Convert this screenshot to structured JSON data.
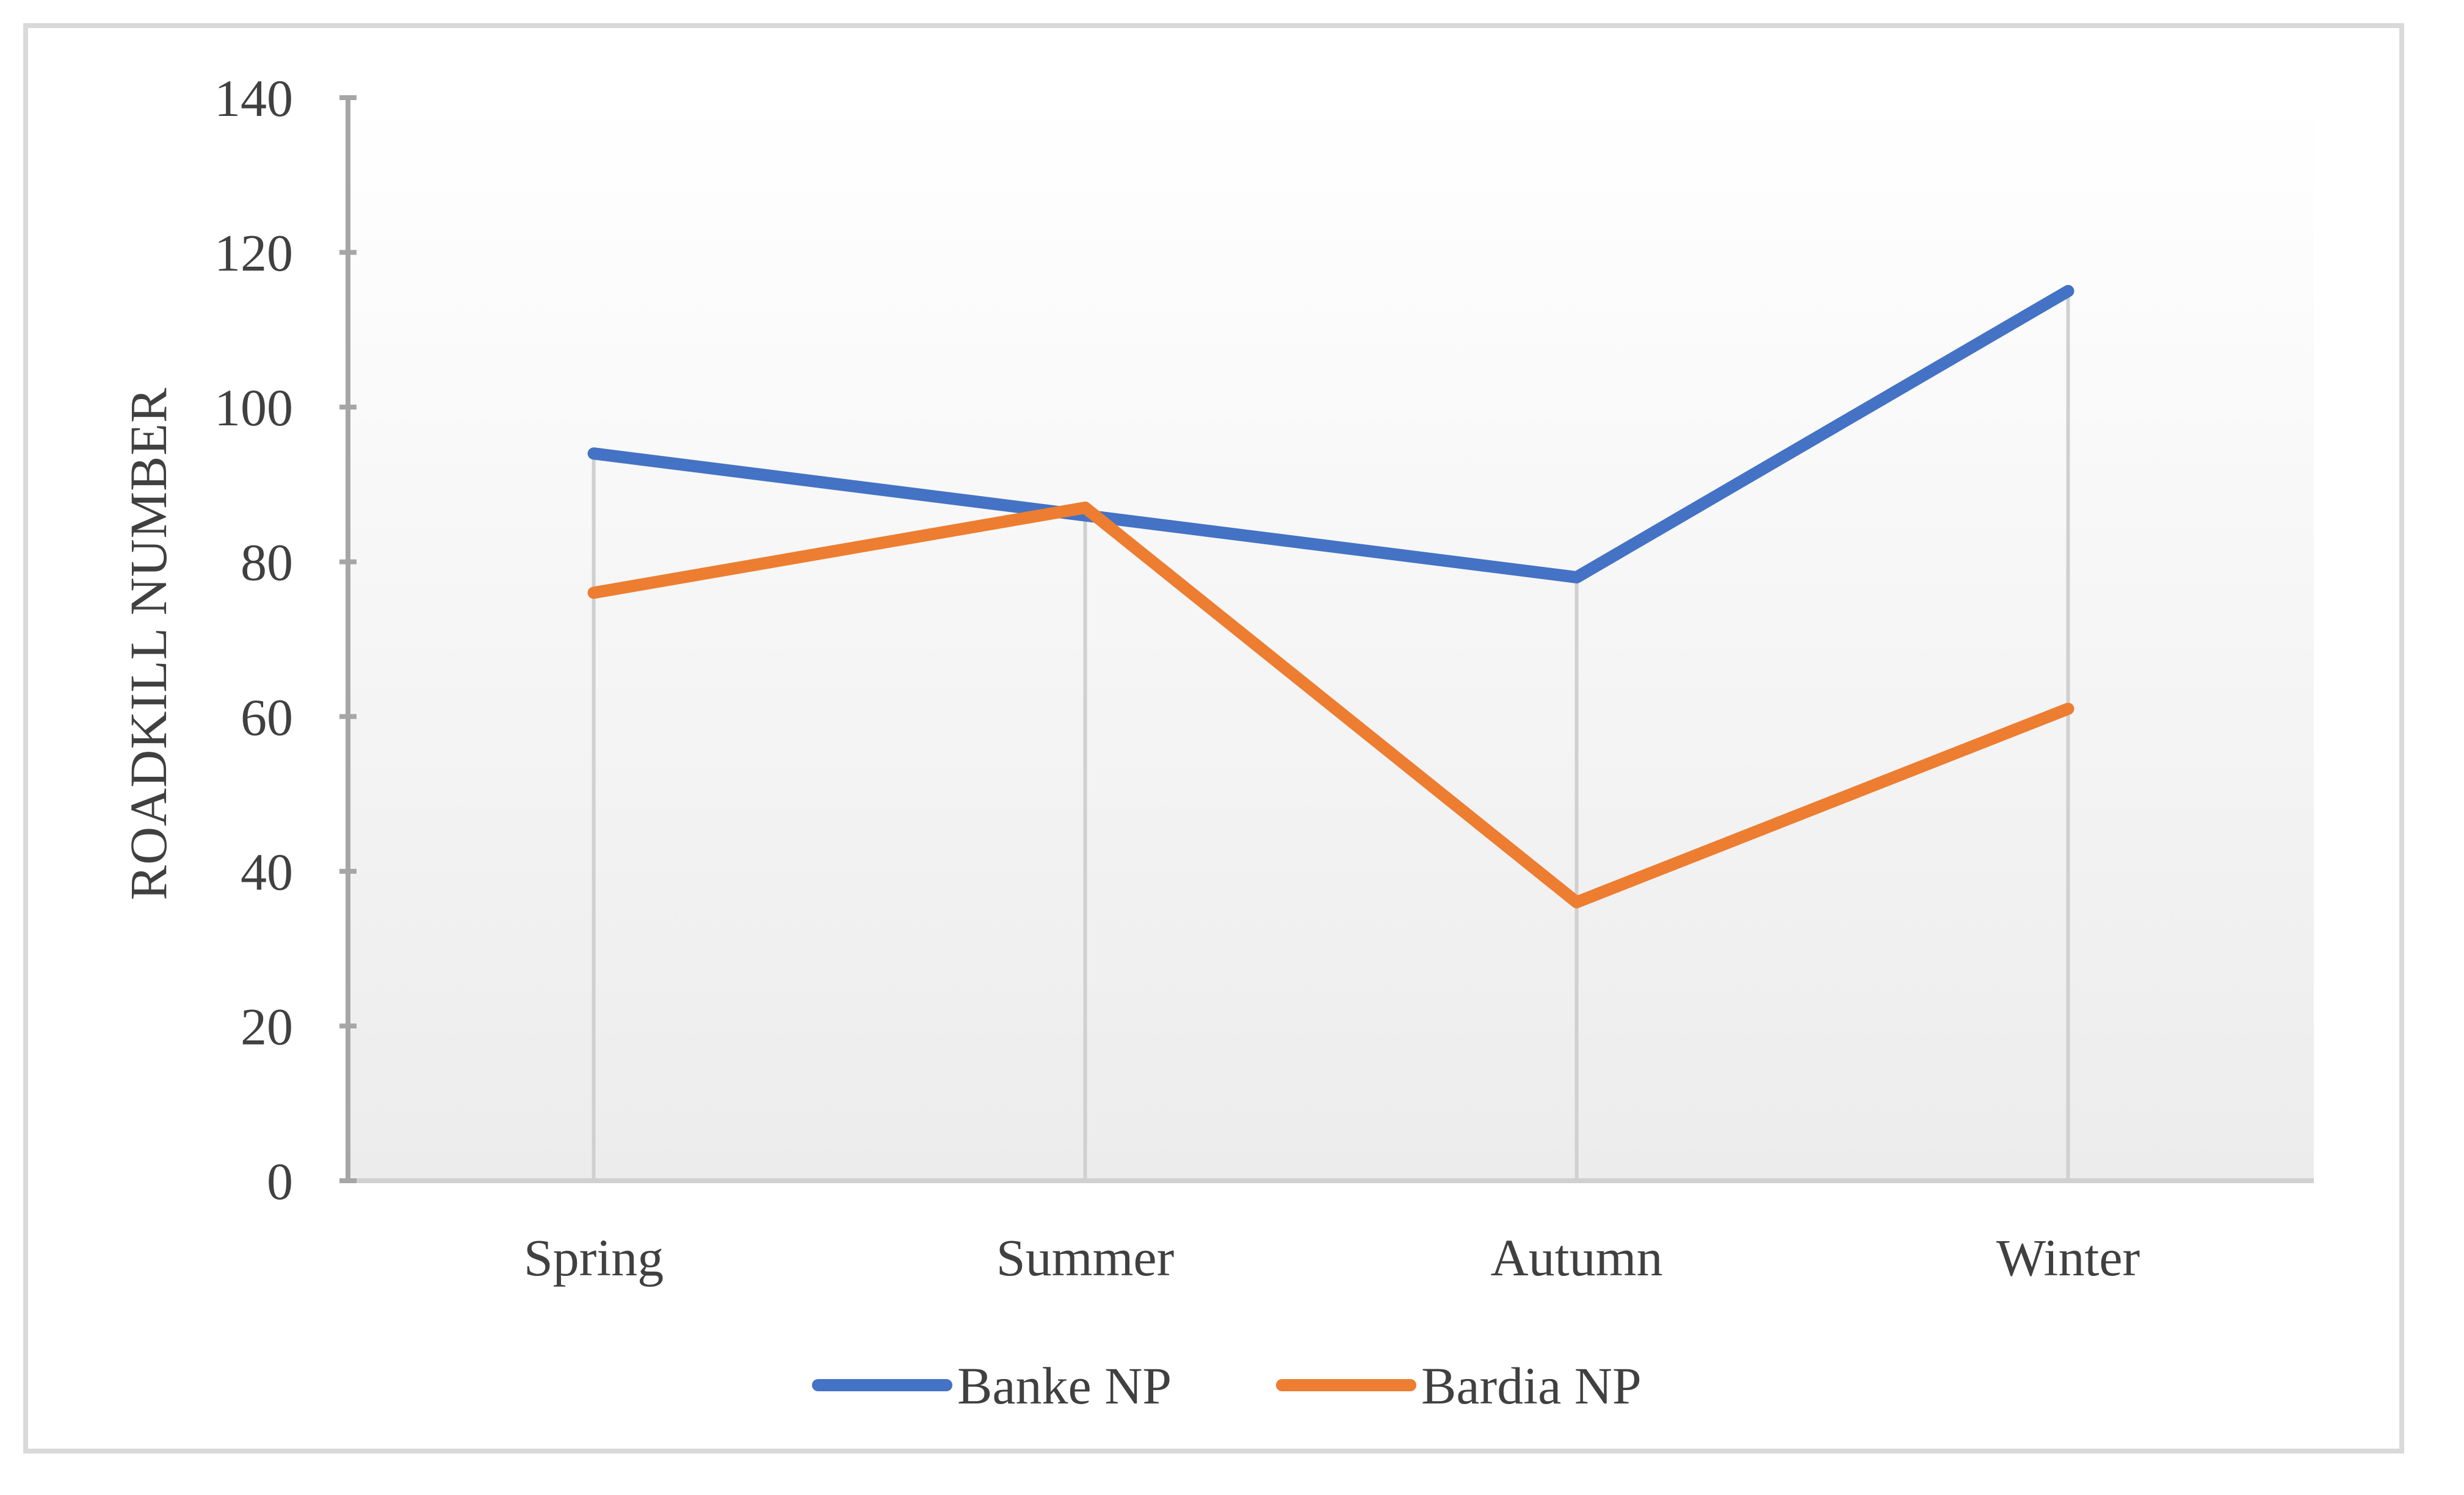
{
  "chart_data": {
    "type": "line",
    "title": "",
    "xlabel": "",
    "ylabel": "ROADKILL NUMBER",
    "categories": [
      "Spring",
      "Summer",
      "Autumn",
      "Winter"
    ],
    "ylim": [
      0,
      140
    ],
    "yticks": [
      0,
      20,
      40,
      60,
      80,
      100,
      120,
      140
    ],
    "series": [
      {
        "name": "Banke NP",
        "color": "#4472c4",
        "values": [
          94,
          86,
          78,
          115
        ]
      },
      {
        "name": "Bardia NP",
        "color": "#ed7d31",
        "values": [
          76,
          87,
          36,
          61
        ]
      }
    ],
    "grid": "vertical drop lines",
    "legend": "bottom-center"
  }
}
